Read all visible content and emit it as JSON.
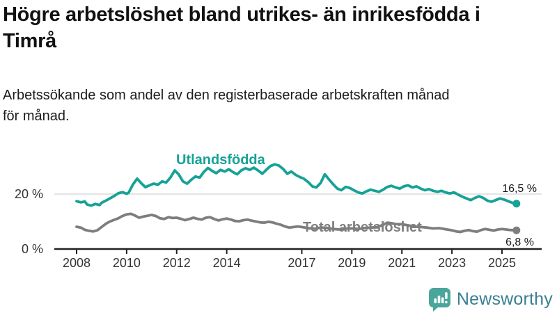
{
  "header": {
    "title": "Högre arbetslöshet bland utrikes- än inrikesfödda i\nTimrå",
    "subtitle": "Arbetssökande som andel av den registerbaserade arbetskraften månad\nför månad."
  },
  "chart_data": {
    "type": "line",
    "title": "Högre arbetslöshet bland utrikes- än inrikesfödda i Timrå",
    "subtitle": "Arbetssökande som andel av den registerbaserade arbetskraften månad för månad.",
    "x_unit": "år (månadsdata)",
    "y_unit": "%",
    "x_range": [
      2008.0,
      2025.9
    ],
    "ylim": [
      0,
      40
    ],
    "grid": "horizontal gridline at 20 % only",
    "legend_position": "inline labels on lines",
    "x_ticks": [
      2008,
      2010,
      2012,
      2014,
      2017,
      2019,
      2021,
      2023,
      2025
    ],
    "y_ticks": [
      {
        "value": 0,
        "label": "0 %"
      },
      {
        "value": 20,
        "label": "20 %"
      }
    ],
    "series": [
      {
        "name": "Utlandsfödda",
        "color": "#16a296",
        "end_label": "16,5 %",
        "end_value": 16.5,
        "points": [
          [
            2008.0,
            17.4
          ],
          [
            2008.17,
            17.0
          ],
          [
            2008.33,
            17.3
          ],
          [
            2008.42,
            16.2
          ],
          [
            2008.58,
            15.8
          ],
          [
            2008.75,
            16.4
          ],
          [
            2008.92,
            16.0
          ],
          [
            2009.0,
            16.8
          ],
          [
            2009.17,
            17.6
          ],
          [
            2009.33,
            18.4
          ],
          [
            2009.5,
            19.3
          ],
          [
            2009.67,
            20.3
          ],
          [
            2009.83,
            20.7
          ],
          [
            2010.0,
            20.1
          ],
          [
            2010.08,
            20.5
          ],
          [
            2010.25,
            23.5
          ],
          [
            2010.42,
            25.6
          ],
          [
            2010.58,
            24.0
          ],
          [
            2010.75,
            22.5
          ],
          [
            2010.92,
            23.2
          ],
          [
            2011.08,
            23.8
          ],
          [
            2011.25,
            23.4
          ],
          [
            2011.42,
            24.6
          ],
          [
            2011.58,
            24.2
          ],
          [
            2011.75,
            26.0
          ],
          [
            2011.92,
            28.6
          ],
          [
            2012.08,
            27.2
          ],
          [
            2012.25,
            24.6
          ],
          [
            2012.42,
            23.8
          ],
          [
            2012.58,
            25.2
          ],
          [
            2012.75,
            26.4
          ],
          [
            2012.92,
            26.0
          ],
          [
            2013.08,
            28.0
          ],
          [
            2013.25,
            29.5
          ],
          [
            2013.42,
            28.4
          ],
          [
            2013.58,
            27.6
          ],
          [
            2013.75,
            28.8
          ],
          [
            2013.92,
            28.2
          ],
          [
            2014.08,
            29.0
          ],
          [
            2014.25,
            28.0
          ],
          [
            2014.42,
            27.2
          ],
          [
            2014.58,
            28.6
          ],
          [
            2014.75,
            29.4
          ],
          [
            2014.92,
            28.8
          ],
          [
            2015.08,
            29.6
          ],
          [
            2015.25,
            28.6
          ],
          [
            2015.42,
            27.4
          ],
          [
            2015.58,
            28.8
          ],
          [
            2015.75,
            30.2
          ],
          [
            2015.92,
            30.8
          ],
          [
            2016.08,
            30.4
          ],
          [
            2016.25,
            29.2
          ],
          [
            2016.42,
            27.4
          ],
          [
            2016.58,
            28.2
          ],
          [
            2016.75,
            27.0
          ],
          [
            2016.92,
            26.2
          ],
          [
            2017.08,
            25.6
          ],
          [
            2017.25,
            24.4
          ],
          [
            2017.42,
            22.8
          ],
          [
            2017.58,
            22.4
          ],
          [
            2017.75,
            24.0
          ],
          [
            2017.92,
            27.2
          ],
          [
            2018.08,
            25.4
          ],
          [
            2018.25,
            23.6
          ],
          [
            2018.42,
            22.0
          ],
          [
            2018.58,
            21.4
          ],
          [
            2018.75,
            22.6
          ],
          [
            2018.92,
            22.2
          ],
          [
            2019.08,
            21.4
          ],
          [
            2019.25,
            20.6
          ],
          [
            2019.42,
            20.2
          ],
          [
            2019.58,
            21.0
          ],
          [
            2019.75,
            21.6
          ],
          [
            2019.92,
            21.2
          ],
          [
            2020.08,
            20.8
          ],
          [
            2020.25,
            21.6
          ],
          [
            2020.42,
            22.6
          ],
          [
            2020.58,
            23.0
          ],
          [
            2020.75,
            22.4
          ],
          [
            2020.92,
            22.0
          ],
          [
            2021.08,
            22.8
          ],
          [
            2021.25,
            23.2
          ],
          [
            2021.42,
            22.4
          ],
          [
            2021.58,
            22.8
          ],
          [
            2021.75,
            22.0
          ],
          [
            2021.92,
            21.4
          ],
          [
            2022.08,
            21.8
          ],
          [
            2022.25,
            21.2
          ],
          [
            2022.42,
            20.8
          ],
          [
            2022.58,
            21.2
          ],
          [
            2022.75,
            20.6
          ],
          [
            2022.92,
            20.2
          ],
          [
            2023.08,
            20.6
          ],
          [
            2023.25,
            19.8
          ],
          [
            2023.42,
            19.0
          ],
          [
            2023.58,
            18.4
          ],
          [
            2023.75,
            17.8
          ],
          [
            2023.92,
            18.6
          ],
          [
            2024.08,
            19.2
          ],
          [
            2024.25,
            18.6
          ],
          [
            2024.42,
            17.6
          ],
          [
            2024.58,
            17.2
          ],
          [
            2024.75,
            17.8
          ],
          [
            2024.92,
            18.4
          ],
          [
            2025.08,
            18.0
          ],
          [
            2025.25,
            17.4
          ],
          [
            2025.42,
            16.8
          ],
          [
            2025.58,
            16.5
          ]
        ]
      },
      {
        "name": "Total arbetslöshet",
        "color": "#7e7e7e",
        "end_label": "6,8 %",
        "end_value": 6.8,
        "points": [
          [
            2008.0,
            8.1
          ],
          [
            2008.17,
            7.8
          ],
          [
            2008.33,
            7.0
          ],
          [
            2008.5,
            6.6
          ],
          [
            2008.67,
            6.4
          ],
          [
            2008.83,
            6.8
          ],
          [
            2009.0,
            8.0
          ],
          [
            2009.17,
            9.2
          ],
          [
            2009.33,
            10.0
          ],
          [
            2009.5,
            10.6
          ],
          [
            2009.67,
            11.2
          ],
          [
            2009.83,
            12.0
          ],
          [
            2010.0,
            12.6
          ],
          [
            2010.17,
            12.8
          ],
          [
            2010.33,
            12.2
          ],
          [
            2010.5,
            11.4
          ],
          [
            2010.67,
            11.8
          ],
          [
            2010.83,
            12.1
          ],
          [
            2011.0,
            12.4
          ],
          [
            2011.17,
            12.0
          ],
          [
            2011.33,
            11.2
          ],
          [
            2011.5,
            10.9
          ],
          [
            2011.67,
            11.6
          ],
          [
            2011.83,
            11.3
          ],
          [
            2012.0,
            11.4
          ],
          [
            2012.17,
            11.0
          ],
          [
            2012.33,
            10.5
          ],
          [
            2012.5,
            10.9
          ],
          [
            2012.67,
            11.4
          ],
          [
            2012.83,
            11.0
          ],
          [
            2013.0,
            10.7
          ],
          [
            2013.17,
            11.4
          ],
          [
            2013.33,
            11.6
          ],
          [
            2013.5,
            10.9
          ],
          [
            2013.67,
            10.4
          ],
          [
            2013.83,
            10.8
          ],
          [
            2014.0,
            11.1
          ],
          [
            2014.17,
            10.7
          ],
          [
            2014.33,
            10.2
          ],
          [
            2014.5,
            10.1
          ],
          [
            2014.67,
            10.5
          ],
          [
            2014.83,
            10.7
          ],
          [
            2015.0,
            10.3
          ],
          [
            2015.17,
            10.0
          ],
          [
            2015.33,
            9.7
          ],
          [
            2015.5,
            9.6
          ],
          [
            2015.67,
            9.9
          ],
          [
            2015.83,
            9.7
          ],
          [
            2016.0,
            9.2
          ],
          [
            2016.17,
            8.8
          ],
          [
            2016.33,
            8.2
          ],
          [
            2016.5,
            7.8
          ],
          [
            2016.67,
            8.0
          ],
          [
            2016.83,
            8.2
          ],
          [
            2017.0,
            8.0
          ],
          [
            2017.25,
            7.6
          ],
          [
            2017.5,
            7.4
          ],
          [
            2017.75,
            7.8
          ],
          [
            2018.0,
            7.7
          ],
          [
            2018.25,
            7.3
          ],
          [
            2018.5,
            7.1
          ],
          [
            2018.75,
            7.4
          ],
          [
            2019.0,
            7.5
          ],
          [
            2019.25,
            7.3
          ],
          [
            2019.5,
            7.6
          ],
          [
            2019.75,
            7.8
          ],
          [
            2020.0,
            7.9
          ],
          [
            2020.25,
            8.8
          ],
          [
            2020.42,
            9.6
          ],
          [
            2020.58,
            9.4
          ],
          [
            2020.75,
            9.1
          ],
          [
            2021.0,
            9.0
          ],
          [
            2021.25,
            8.6
          ],
          [
            2021.5,
            8.2
          ],
          [
            2021.75,
            8.0
          ],
          [
            2022.0,
            7.8
          ],
          [
            2022.25,
            7.5
          ],
          [
            2022.5,
            7.6
          ],
          [
            2022.75,
            7.2
          ],
          [
            2023.0,
            6.8
          ],
          [
            2023.17,
            6.4
          ],
          [
            2023.33,
            6.2
          ],
          [
            2023.5,
            6.6
          ],
          [
            2023.67,
            6.9
          ],
          [
            2023.83,
            6.5
          ],
          [
            2024.0,
            6.3
          ],
          [
            2024.17,
            6.9
          ],
          [
            2024.33,
            7.3
          ],
          [
            2024.5,
            7.0
          ],
          [
            2024.67,
            6.7
          ],
          [
            2024.83,
            7.1
          ],
          [
            2025.0,
            7.3
          ],
          [
            2025.17,
            7.1
          ],
          [
            2025.33,
            6.9
          ],
          [
            2025.58,
            6.8
          ]
        ]
      }
    ]
  },
  "branding": {
    "name": "Newsworthy",
    "icon": "speech-bubble-with-bar-chart-and-exclamation",
    "icon_color": "#4aa69b",
    "text_color": "#3a7f92"
  },
  "colors": {
    "background": "#ffffff",
    "axis": "#222222",
    "gridline": "#dcdcdc",
    "title_text": "#111111",
    "tick_text": "#333333"
  }
}
